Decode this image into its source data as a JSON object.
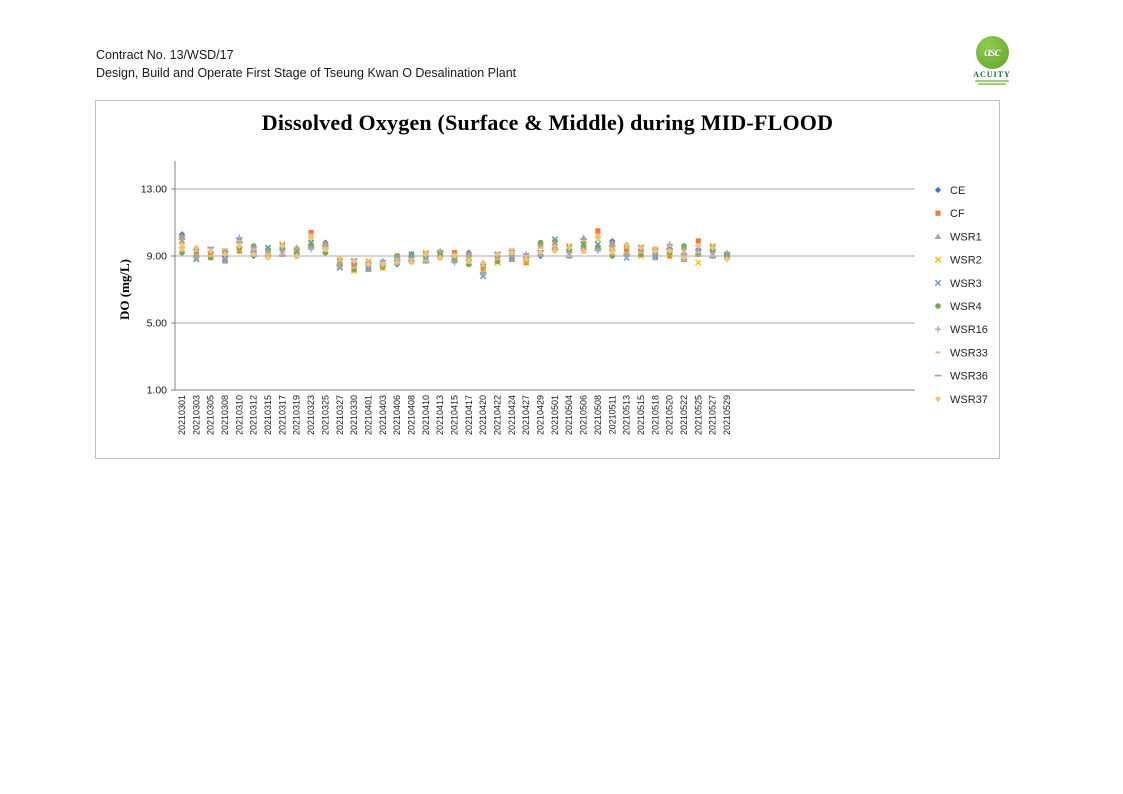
{
  "page": {
    "header_line1": "Contract No. 13/WSD/17",
    "header_line2": "Design, Build and Operate First Stage of Tseung Kwan O Desalination Plant"
  },
  "logo": {
    "monogram": "asc",
    "name": "ACUITY"
  },
  "chart_data": {
    "type": "scatter",
    "title": "Dissolved Oxygen (Surface & Middle) during MID-FLOOD",
    "xlabel": "",
    "ylabel": "DO (mg/L)",
    "ylim": [
      1,
      15
    ],
    "yticks": [
      {
        "value": 13,
        "label": "13.00"
      },
      {
        "value": 9,
        "label": "9.00"
      },
      {
        "value": 5,
        "label": "5.00"
      },
      {
        "value": 1,
        "label": "1.00"
      }
    ],
    "grid": "horizontal-major",
    "legend_position": "right",
    "categories": [
      "20210301",
      "20210303",
      "20210305",
      "20210308",
      "20210310",
      "20210312",
      "20210315",
      "20210317",
      "20210319",
      "20210323",
      "20210325",
      "20210327",
      "20210330",
      "20210401",
      "20210403",
      "20210406",
      "20210408",
      "20210410",
      "20210413",
      "20210415",
      "20210417",
      "20210420",
      "20210422",
      "20210424",
      "20210427",
      "20210429",
      "20210501",
      "20210504",
      "20210506",
      "20210508",
      "20210511",
      "20210513",
      "20210515",
      "20210518",
      "20210520",
      "20210522",
      "20210525",
      "20210527",
      "20210529"
    ],
    "series": [
      {
        "name": "CE",
        "marker": "diamond",
        "color": "#4472C4",
        "values": [
          10.3,
          9.4,
          9.2,
          9.0,
          9.5,
          9.0,
          9.4,
          9.1,
          9.3,
          9.7,
          9.8,
          8.8,
          8.5,
          8.4,
          8.4,
          8.5,
          9.1,
          8.7,
          9.2,
          8.8,
          9.2,
          8.4,
          9.0,
          9.0,
          8.7,
          9.0,
          9.9,
          9.0,
          9.8,
          9.6,
          9.9,
          9.5,
          9.4,
          9.1,
          9.1,
          8.8,
          9.4,
          9.0,
          9.1
        ]
      },
      {
        "name": "CF",
        "marker": "square",
        "color": "#ED7D31",
        "values": [
          10.1,
          9.2,
          9.1,
          8.8,
          9.3,
          9.5,
          9.0,
          9.5,
          9.1,
          10.4,
          9.7,
          8.7,
          8.4,
          8.3,
          8.3,
          9.0,
          8.7,
          9.0,
          9.0,
          9.2,
          9.1,
          8.3,
          8.8,
          8.9,
          8.6,
          9.7,
          9.4,
          9.4,
          9.5,
          10.5,
          9.7,
          9.4,
          9.2,
          9.0,
          9.0,
          9.5,
          9.9,
          9.4,
          8.9
        ]
      },
      {
        "name": "WSR1",
        "marker": "triangle",
        "color": "#A5A5A5",
        "values": [
          9.9,
          9.1,
          9.0,
          8.7,
          10.0,
          9.1,
          9.3,
          9.2,
          9.5,
          10.2,
          9.6,
          8.5,
          8.2,
          8.2,
          8.7,
          8.6,
          9.0,
          8.8,
          9.3,
          9.1,
          8.9,
          8.1,
          8.7,
          8.8,
          9.1,
          9.1,
          9.8,
          9.1,
          10.1,
          10.2,
          9.5,
          9.2,
          9.1,
          8.9,
          9.6,
          8.8,
          9.3,
          9.1,
          9.2
        ]
      },
      {
        "name": "WSR2",
        "marker": "x",
        "color": "#FFC000",
        "values": [
          9.6,
          8.9,
          8.9,
          9.3,
          9.4,
          9.4,
          9.1,
          9.7,
          9.4,
          10.0,
          9.4,
          8.4,
          8.1,
          8.7,
          8.3,
          8.9,
          8.8,
          9.2,
          9.2,
          9.0,
          8.8,
          8.0,
          8.6,
          9.3,
          8.7,
          9.6,
          9.5,
          9.6,
          9.9,
          10.0,
          9.4,
          9.1,
          9.0,
          9.4,
          9.1,
          9.3,
          8.6,
          9.6,
          9.1
        ]
      },
      {
        "name": "WSR3",
        "marker": "x",
        "color": "#5B9BD5",
        "values": [
          9.4,
          8.8,
          9.4,
          8.8,
          9.9,
          9.2,
          9.5,
          9.6,
          9.3,
          9.8,
          9.3,
          8.3,
          8.7,
          8.3,
          8.6,
          8.7,
          9.1,
          9.1,
          9.1,
          8.8,
          8.6,
          7.8,
          9.1,
          8.9,
          9.0,
          9.2,
          10.0,
          9.5,
          9.7,
          9.7,
          9.2,
          8.9,
          9.5,
          9.0,
          9.5,
          9.0,
          9.5,
          9.5,
          9.0
        ]
      },
      {
        "name": "WSR4",
        "marker": "circle",
        "color": "#70AD47",
        "values": [
          9.2,
          9.4,
          8.9,
          9.2,
          9.5,
          9.6,
          9.4,
          9.4,
          9.1,
          9.6,
          9.2,
          8.8,
          8.2,
          8.6,
          8.4,
          9.0,
          9.0,
          9.0,
          9.0,
          8.7,
          8.5,
          8.5,
          8.7,
          9.2,
          8.8,
          9.8,
          9.9,
          9.3,
          9.6,
          9.5,
          9.0,
          9.6,
          9.1,
          9.3,
          9.2,
          9.6,
          9.1,
          9.3,
          9.0
        ]
      },
      {
        "name": "WSR16",
        "marker": "plus",
        "color": "#9DA7CF",
        "values": [
          10.2,
          8.9,
          9.3,
          8.9,
          10.1,
          9.5,
          9.3,
          9.3,
          9.0,
          9.4,
          9.7,
          8.4,
          8.6,
          8.4,
          8.7,
          8.9,
          8.9,
          8.8,
          8.9,
          8.6,
          9.1,
          7.9,
          9.0,
          9.0,
          9.1,
          9.6,
          9.7,
          9.2,
          9.4,
          9.3,
          9.8,
          9.0,
          9.4,
          9.1,
          9.7,
          9.4,
          9.3,
          9.2,
          8.9
        ]
      },
      {
        "name": "WSR33",
        "marker": "dash-short",
        "color": "#F4B183",
        "values": [
          9.3,
          9.3,
          9.0,
          9.4,
          9.9,
          9.4,
          9.1,
          9.1,
          8.9,
          10.3,
          9.3,
          8.7,
          8.3,
          8.7,
          8.6,
          8.8,
          8.8,
          8.7,
          8.8,
          9.1,
          8.6,
          8.4,
          8.8,
          9.4,
          9.0,
          9.5,
          9.6,
          9.0,
          9.2,
          10.3,
          9.1,
          9.5,
          9.2,
          9.5,
          9.6,
          9.2,
          9.2,
          9.0,
          8.8
        ]
      },
      {
        "name": "WSR36",
        "marker": "dash",
        "color": "#A6A6A6",
        "values": [
          10.0,
          9.0,
          9.5,
          9.3,
          9.8,
          9.2,
          9.0,
          9.0,
          9.4,
          9.5,
          9.6,
          8.5,
          8.8,
          8.6,
          8.5,
          8.7,
          8.7,
          8.6,
          9.3,
          8.7,
          9.0,
          8.0,
          9.2,
          9.3,
          8.9,
          9.3,
          9.4,
          8.9,
          10.0,
          9.4,
          9.6,
          9.1,
          9.6,
          9.4,
          9.4,
          9.1,
          9.0,
          8.9,
          9.2
        ]
      },
      {
        "name": "WSR37",
        "marker": "diamond",
        "color": "#F2C573",
        "values": [
          9.5,
          9.5,
          9.3,
          9.1,
          9.6,
          9.1,
          8.9,
          9.6,
          9.0,
          10.1,
          9.4,
          8.9,
          8.7,
          8.5,
          8.5,
          8.6,
          8.6,
          9.1,
          8.9,
          9.0,
          8.7,
          8.6,
          9.1,
          9.2,
          8.8,
          9.2,
          9.3,
          9.5,
          9.3,
          10.1,
          9.3,
          9.7,
          9.5,
          9.3,
          9.3,
          8.9,
          9.6,
          9.5,
          8.8
        ]
      }
    ]
  }
}
